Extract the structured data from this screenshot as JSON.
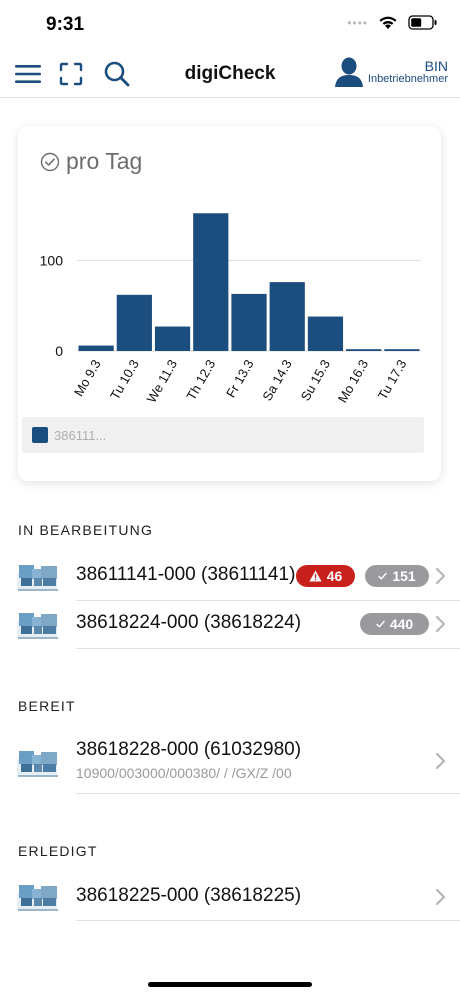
{
  "status_bar": {
    "time": "9:31",
    "signal_dots": "••••"
  },
  "nav": {
    "title": "digiCheck",
    "user_name": "BIN",
    "user_role": "Inbetriebnehmer"
  },
  "chart_card": {
    "title": "pro Tag",
    "legend_label": "386111..."
  },
  "chart_data": {
    "type": "bar",
    "title": "pro Tag",
    "categories": [
      "Mo 9.3",
      "Tu 10.3",
      "We 11.3",
      "Th 12.3",
      "Fr 13.3",
      "Sa 14.3",
      "Su 15.3",
      "Mo 16.3",
      "Tu 17.3"
    ],
    "series": [
      {
        "name": "386111...",
        "values": [
          6,
          62,
          27,
          152,
          63,
          76,
          38,
          2,
          2
        ],
        "color": "#1b4d7e"
      }
    ],
    "yticks": [
      0,
      100
    ],
    "ytick_labels": [
      "0",
      "100"
    ],
    "ylim": [
      0,
      160
    ],
    "grid": true,
    "legend_position": "bottom"
  },
  "sections": {
    "in_bearbeitung": "IN BEARBEITUNG",
    "bereit": "BEREIT",
    "erledigt": "ERLEDIGT"
  },
  "items": {
    "in_bearbeitung": [
      {
        "title": "38611141-000 (38611141)",
        "warn_count": "46",
        "check_count": "151"
      },
      {
        "title": "38618224-000 (38618224)",
        "check_count": "440"
      }
    ],
    "bereit": [
      {
        "title": "38618228-000 (61032980)",
        "subtitle": "10900/003000/000380/ / /GX/Z /00"
      }
    ],
    "erledigt": [
      {
        "title": "38618225-000 (38618225)"
      }
    ]
  },
  "colors": {
    "accent": "#1b4d7e",
    "warn": "#c8201c",
    "neutral_badge": "#9a9a9e"
  }
}
